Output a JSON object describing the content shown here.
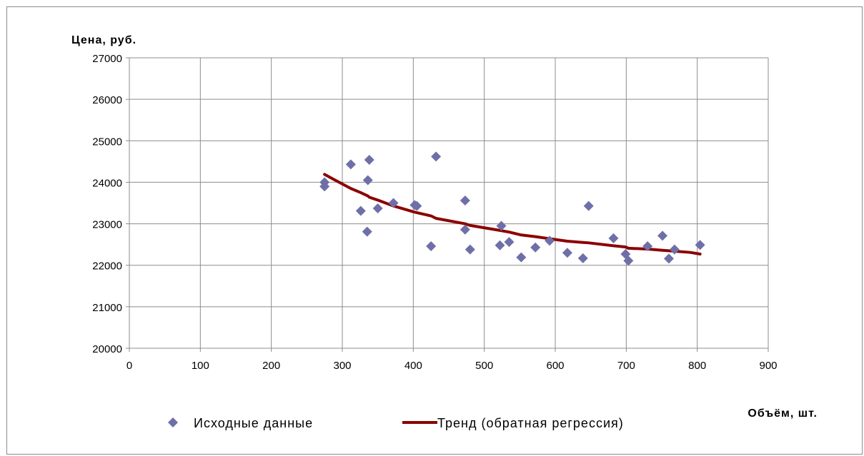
{
  "chart_data": {
    "type": "scatter",
    "ylabel": "Цена, руб.",
    "xlabel": "Объём, шт.",
    "xlim": [
      0,
      900
    ],
    "ylim": [
      20000,
      27000
    ],
    "x_ticks": [
      0,
      100,
      200,
      300,
      400,
      500,
      600,
      700,
      800,
      900
    ],
    "y_ticks": [
      20000,
      21000,
      22000,
      23000,
      24000,
      25000,
      26000,
      27000
    ],
    "grid": true,
    "legend_position": "bottom",
    "series": [
      {
        "name": "Исходные данные",
        "kind": "scatter",
        "marker": "diamond",
        "color": "#6f6fa8",
        "x": [
          275,
          275,
          312,
          326,
          336,
          338,
          335,
          350,
          372,
          402,
          405,
          425,
          432,
          473,
          473,
          480,
          522,
          524,
          535,
          552,
          572,
          592,
          617,
          639,
          647,
          682,
          699,
          703,
          730,
          751,
          760,
          768,
          804
        ],
        "y": [
          24000,
          23900,
          24430,
          23310,
          24050,
          24540,
          22810,
          23370,
          23500,
          23450,
          23430,
          22460,
          24620,
          23560,
          22860,
          22380,
          22480,
          22950,
          22560,
          22190,
          22430,
          22590,
          22300,
          22170,
          23430,
          22650,
          22270,
          22110,
          22460,
          22710,
          22160,
          22380,
          22490
        ]
      },
      {
        "name": "Тренд (обратная регрессия)",
        "kind": "line",
        "color": "#8b0000",
        "x": [
          275,
          290,
          300,
          312,
          326,
          336,
          338,
          350,
          372,
          402,
          425,
          432,
          473,
          480,
          522,
          535,
          552,
          572,
          592,
          617,
          639,
          647,
          682,
          699,
          703,
          730,
          751,
          760,
          768,
          790,
          804
        ],
        "y": [
          24190,
          24050,
          23960,
          23850,
          23750,
          23670,
          23640,
          23570,
          23430,
          23280,
          23190,
          23130,
          23000,
          22960,
          22840,
          22800,
          22730,
          22690,
          22640,
          22580,
          22550,
          22540,
          22470,
          22440,
          22410,
          22390,
          22360,
          22350,
          22340,
          22310,
          22270
        ]
      }
    ]
  }
}
